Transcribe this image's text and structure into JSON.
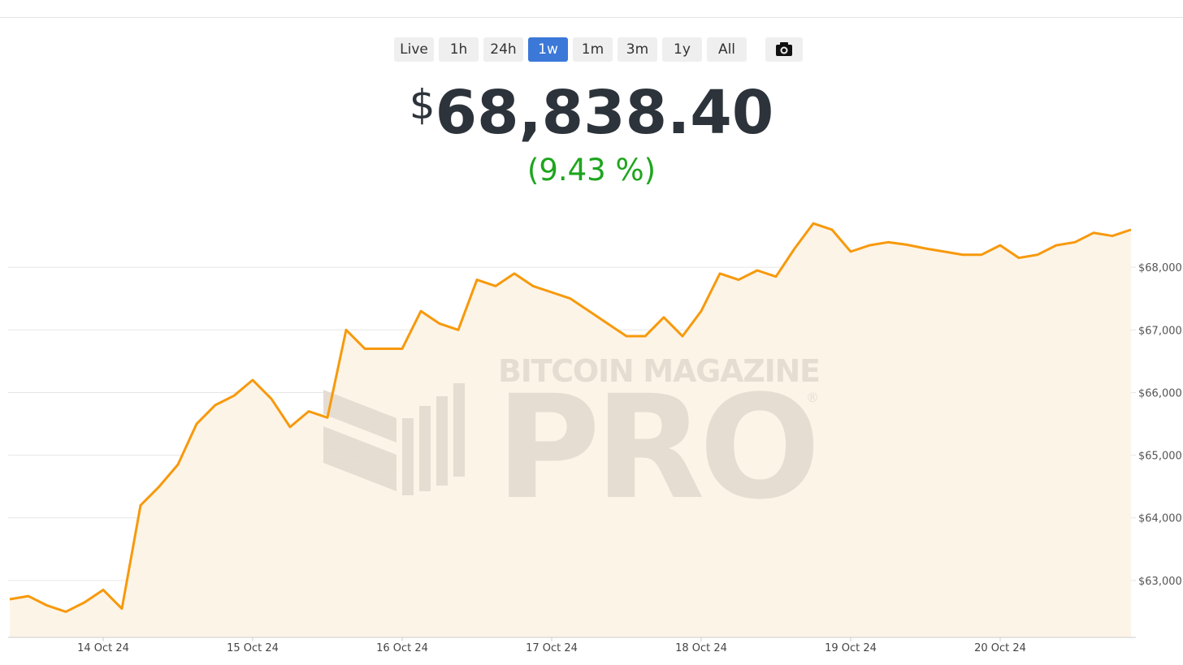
{
  "buttons": [
    "Live",
    "1h",
    "24h",
    "1w",
    "1m",
    "3m",
    "1y",
    "All"
  ],
  "price": {
    "currency": "$",
    "amount": "68,838.40"
  },
  "change": "(9.43 %)",
  "watermark": {
    "brand": "BITCOIN MAGAZINE",
    "product": "PRO",
    "mark": "®"
  },
  "chart_data": {
    "type": "area",
    "categories": [
      null,
      null,
      null,
      null,
      null,
      "14 Oct 24",
      null,
      null,
      null,
      null,
      null,
      null,
      null,
      "15 Oct 24",
      null,
      null,
      null,
      null,
      null,
      null,
      null,
      "16 Oct 24",
      null,
      null,
      null,
      null,
      null,
      null,
      null,
      "17 Oct 24",
      null,
      null,
      null,
      null,
      null,
      null,
      null,
      "18 Oct 24",
      null,
      null,
      null,
      null,
      null,
      null,
      null,
      "19 Oct 24",
      null,
      null,
      null,
      null,
      null,
      null,
      null,
      "20 Oct 24",
      null,
      null,
      null,
      null,
      null,
      null,
      null
    ],
    "series": [
      {
        "name": "Price",
        "color": "#f7990c",
        "fill": "#fdf4e8",
        "values": [
          62700,
          62750,
          62600,
          62500,
          62650,
          62850,
          62550,
          64200,
          64500,
          64850,
          65500,
          65800,
          65950,
          66200,
          65900,
          65450,
          65700,
          65600,
          67000,
          66700,
          66700,
          66700,
          67300,
          67100,
          67000,
          67800,
          67700,
          67900,
          67700,
          67600,
          67500,
          67300,
          67100,
          66900,
          66900,
          67200,
          66900,
          67300,
          67900,
          67800,
          67950,
          67850,
          68300,
          68700,
          68600,
          68250,
          68350,
          68400,
          68360,
          68300,
          68250,
          68200,
          68200,
          68350,
          68150,
          68200,
          68350,
          68400,
          68550,
          68500,
          68600
        ]
      }
    ],
    "ylim": [
      62091,
      69026
    ],
    "yticks": [
      {
        "value": 63000,
        "label": "$63,000"
      },
      {
        "value": 64000,
        "label": "$64,000"
      },
      {
        "value": 65000,
        "label": "$65,000"
      },
      {
        "value": 66000,
        "label": "$66,000"
      },
      {
        "value": 67000,
        "label": "$67,000"
      },
      {
        "value": 68000,
        "label": "$68,000"
      }
    ],
    "grid": true
  }
}
